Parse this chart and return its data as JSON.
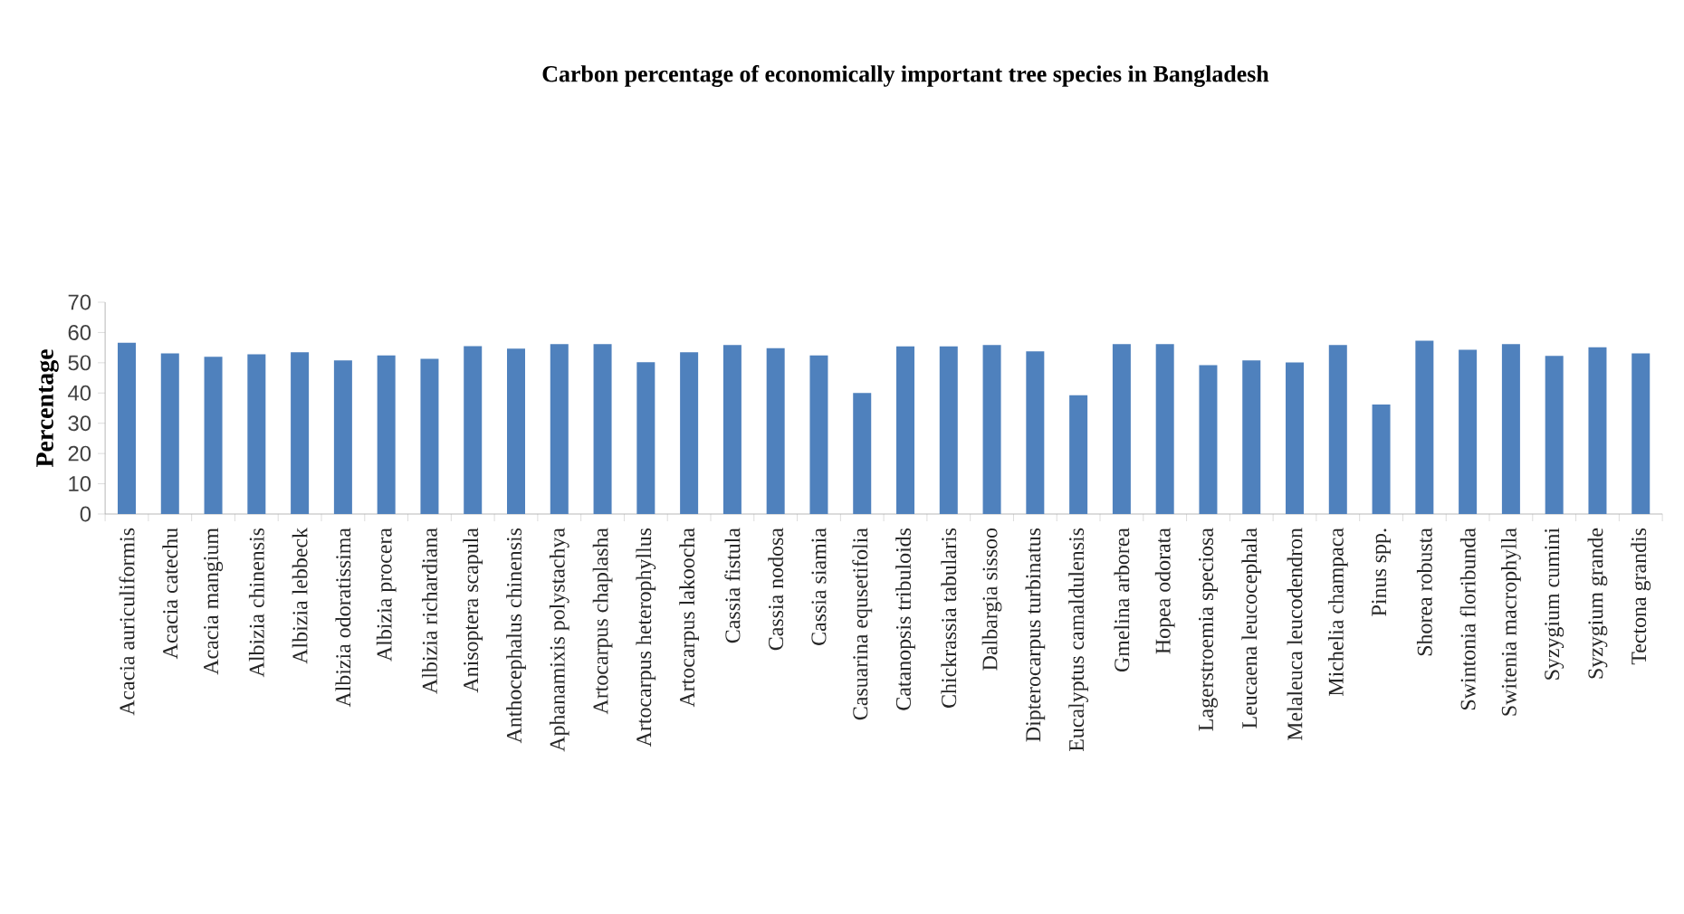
{
  "chart_data": {
    "type": "bar",
    "title": "Carbon percentage of economically important  tree species in Bangladesh",
    "ylabel": "Percentage",
    "categories": [
      "Acacia auriculiformis",
      "Acacia catechu",
      "Acacia mangium",
      "Albizia chinensis",
      "Albizia lebbeck",
      "Albizia odoratissima",
      "Albizia procera",
      "Albizia richardiana",
      "Anisoptera scapula",
      "Anthocephalus chinensis",
      "Aphanamixis polystachya",
      "Artocarpus chaplasha",
      "Artocarpus heterophyllus",
      "Artocarpus lakoocha",
      "Cassia fistula",
      "Cassia nodosa",
      "Cassia siamia",
      "Casuarina equsetifolia",
      "Catanopsis tribuloids",
      "Chickrassia tabularis",
      "Dalbargia sissoo",
      "Dipterocarpus turbinatus",
      "Eucalyptus camaldulensis",
      "Gmelina arborea",
      "Hopea odorata",
      "Lagerstroemia speciosa",
      "Leucaena leucocephala",
      "Melaleuca leucodendron",
      "Michelia champaca",
      "Pinus spp.",
      "Shorea robusta",
      "Swintonia floribunda",
      "Switenia macrophylla",
      "Syzygium cumini",
      "Syzygium grande",
      "Tectona grandis"
    ],
    "values": [
      56.6,
      53.1,
      52.0,
      52.8,
      53.5,
      50.8,
      52.4,
      51.3,
      55.5,
      54.7,
      56.2,
      56.2,
      50.2,
      53.5,
      55.9,
      54.8,
      52.4,
      40.0,
      55.4,
      55.4,
      55.9,
      53.8,
      39.3,
      56.2,
      56.2,
      49.2,
      50.8,
      50.1,
      55.9,
      36.2,
      57.3,
      54.3,
      56.2,
      52.3,
      55.1,
      53.1
    ],
    "color": "#4f81bd",
    "ylim": [
      0,
      70
    ],
    "yticks": [
      0,
      10,
      20,
      30,
      40,
      50,
      60,
      70
    ]
  }
}
